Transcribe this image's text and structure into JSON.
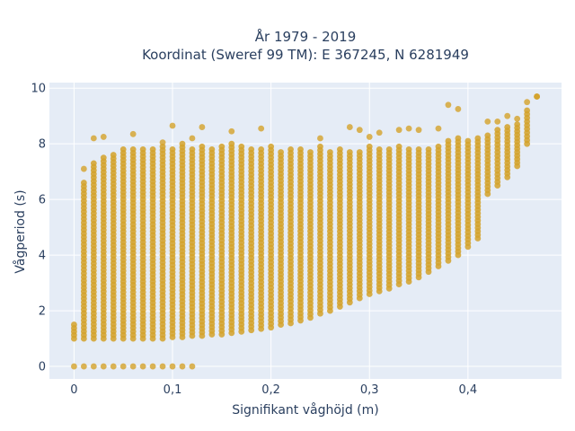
{
  "chart_data": {
    "type": "scatter",
    "title_line1": "År 1979 - 2019",
    "title_line2": "Koordinat (Sweref 99 TM): E 367245, N 6281949",
    "xlabel": "Signifikant våghöjd (m)",
    "ylabel": "Vågperiod (s)",
    "xlim": [
      -0.025,
      0.495
    ],
    "ylim": [
      -0.45,
      10.2
    ],
    "x_ticks": [
      0,
      0.1,
      0.2,
      0.3,
      0.4
    ],
    "x_tick_labels": [
      "0",
      "0,1",
      "0,2",
      "0,3",
      "0,4"
    ],
    "y_ticks": [
      0,
      2,
      4,
      6,
      8,
      10
    ],
    "y_tick_labels": [
      "0",
      "2",
      "4",
      "6",
      "8",
      "10"
    ],
    "grid": true,
    "colors": {
      "marker": "#d4a22a",
      "plot_bg": "#e5ecf6",
      "grid": "#ffffff",
      "text": "#2a3f5f"
    },
    "x_step": 0.01,
    "columns": [
      {
        "x": 0.0,
        "ymin": 1.0,
        "ymax": 1.5,
        "extra": [
          0
        ]
      },
      {
        "x": 0.01,
        "ymin": 1.0,
        "ymax": 6.6,
        "extra": [
          0,
          7.1
        ]
      },
      {
        "x": 0.02,
        "ymin": 1.0,
        "ymax": 7.3,
        "extra": [
          0,
          8.2
        ]
      },
      {
        "x": 0.03,
        "ymin": 1.0,
        "ymax": 7.5,
        "extra": [
          0,
          8.25
        ]
      },
      {
        "x": 0.04,
        "ymin": 1.0,
        "ymax": 7.6,
        "extra": [
          0
        ]
      },
      {
        "x": 0.05,
        "ymin": 1.0,
        "ymax": 7.8,
        "extra": [
          0
        ]
      },
      {
        "x": 0.06,
        "ymin": 1.0,
        "ymax": 7.8,
        "extra": [
          0,
          8.35
        ]
      },
      {
        "x": 0.07,
        "ymin": 1.0,
        "ymax": 7.8,
        "extra": [
          0
        ]
      },
      {
        "x": 0.08,
        "ymin": 1.0,
        "ymax": 7.8,
        "extra": [
          0
        ]
      },
      {
        "x": 0.09,
        "ymin": 1.0,
        "ymax": 7.9,
        "extra": [
          0,
          8.05
        ]
      },
      {
        "x": 0.1,
        "ymin": 1.05,
        "ymax": 7.8,
        "extra": [
          0,
          8.65
        ]
      },
      {
        "x": 0.11,
        "ymin": 1.05,
        "ymax": 8.0,
        "extra": [
          0
        ]
      },
      {
        "x": 0.12,
        "ymin": 1.1,
        "ymax": 7.8,
        "extra": [
          0,
          8.2
        ]
      },
      {
        "x": 0.13,
        "ymin": 1.1,
        "ymax": 7.9,
        "extra": [
          8.6
        ]
      },
      {
        "x": 0.14,
        "ymin": 1.15,
        "ymax": 7.8,
        "extra": []
      },
      {
        "x": 0.15,
        "ymin": 1.15,
        "ymax": 7.9,
        "extra": []
      },
      {
        "x": 0.16,
        "ymin": 1.2,
        "ymax": 8.0,
        "extra": [
          8.45
        ]
      },
      {
        "x": 0.17,
        "ymin": 1.25,
        "ymax": 7.9,
        "extra": []
      },
      {
        "x": 0.18,
        "ymin": 1.3,
        "ymax": 7.8,
        "extra": []
      },
      {
        "x": 0.19,
        "ymin": 1.35,
        "ymax": 7.8,
        "extra": [
          8.55
        ]
      },
      {
        "x": 0.2,
        "ymin": 1.4,
        "ymax": 7.9,
        "extra": []
      },
      {
        "x": 0.21,
        "ymin": 1.5,
        "ymax": 7.7,
        "extra": []
      },
      {
        "x": 0.22,
        "ymin": 1.55,
        "ymax": 7.8,
        "extra": []
      },
      {
        "x": 0.23,
        "ymin": 1.65,
        "ymax": 7.8,
        "extra": []
      },
      {
        "x": 0.24,
        "ymin": 1.75,
        "ymax": 7.7,
        "extra": []
      },
      {
        "x": 0.25,
        "ymin": 1.9,
        "ymax": 7.9,
        "extra": [
          8.2
        ]
      },
      {
        "x": 0.26,
        "ymin": 2.0,
        "ymax": 7.7,
        "extra": []
      },
      {
        "x": 0.27,
        "ymin": 2.15,
        "ymax": 7.8,
        "extra": []
      },
      {
        "x": 0.28,
        "ymin": 2.3,
        "ymax": 7.7,
        "extra": [
          8.6
        ]
      },
      {
        "x": 0.29,
        "ymin": 2.45,
        "ymax": 7.7,
        "extra": [
          8.5
        ]
      },
      {
        "x": 0.3,
        "ymin": 2.6,
        "ymax": 7.9,
        "extra": [
          8.25
        ]
      },
      {
        "x": 0.31,
        "ymin": 2.7,
        "ymax": 7.8,
        "extra": [
          8.4
        ]
      },
      {
        "x": 0.32,
        "ymin": 2.8,
        "ymax": 7.8,
        "extra": []
      },
      {
        "x": 0.33,
        "ymin": 2.95,
        "ymax": 7.9,
        "extra": [
          8.5
        ]
      },
      {
        "x": 0.34,
        "ymin": 3.05,
        "ymax": 7.8,
        "extra": [
          8.55
        ]
      },
      {
        "x": 0.35,
        "ymin": 3.2,
        "ymax": 7.8,
        "extra": [
          8.5
        ]
      },
      {
        "x": 0.36,
        "ymin": 3.4,
        "ymax": 7.8,
        "extra": []
      },
      {
        "x": 0.37,
        "ymin": 3.6,
        "ymax": 7.9,
        "extra": [
          8.55
        ]
      },
      {
        "x": 0.38,
        "ymin": 3.8,
        "ymax": 8.1,
        "extra": [
          9.4
        ]
      },
      {
        "x": 0.39,
        "ymin": 4.0,
        "ymax": 8.2,
        "extra": [
          9.25
        ]
      },
      {
        "x": 0.4,
        "ymin": 4.3,
        "ymax": 8.1,
        "extra": []
      },
      {
        "x": 0.41,
        "ymin": 4.6,
        "ymax": 8.2,
        "extra": []
      },
      {
        "x": 0.42,
        "ymin": 6.2,
        "ymax": 8.3,
        "extra": [
          8.8
        ]
      },
      {
        "x": 0.43,
        "ymin": 6.5,
        "ymax": 8.5,
        "extra": [
          8.8
        ]
      },
      {
        "x": 0.44,
        "ymin": 6.8,
        "ymax": 8.6,
        "extra": [
          9.0
        ]
      },
      {
        "x": 0.45,
        "ymin": 7.2,
        "ymax": 8.7,
        "extra": [
          8.9
        ]
      },
      {
        "x": 0.46,
        "ymin": 8.0,
        "ymax": 9.2,
        "extra": [
          9.5
        ]
      },
      {
        "x": 0.47,
        "ymin": 9.7,
        "ymax": 9.7,
        "extra": []
      }
    ]
  }
}
